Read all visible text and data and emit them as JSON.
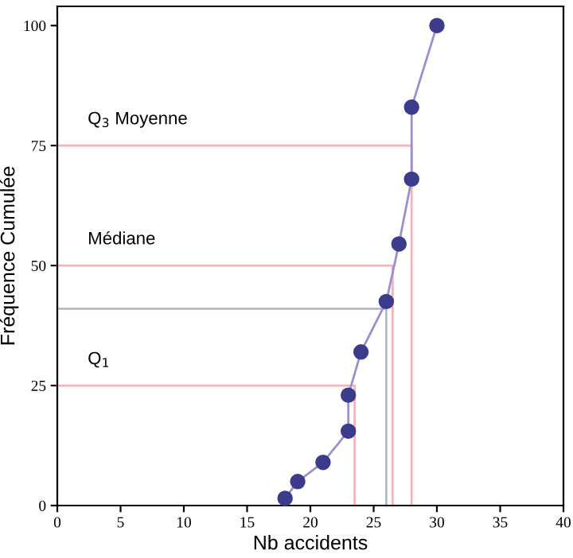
{
  "chart_data": {
    "type": "line",
    "xlabel": "Nb accidents",
    "ylabel": "Fréquence Cumulée",
    "xlim": [
      0,
      40
    ],
    "ylim": [
      0,
      104
    ],
    "xticks": [
      0,
      5,
      10,
      15,
      20,
      25,
      30,
      35,
      40
    ],
    "yticks": [
      0,
      25,
      50,
      75,
      100
    ],
    "grid": false,
    "series": [
      {
        "color": "#f0b4bc",
        "marker": "none",
        "x": [
          0,
          23.5,
          23.5
        ],
        "values": [
          25,
          25,
          0
        ]
      },
      {
        "color": "#f0b4bc",
        "marker": "none",
        "x": [
          0,
          26.5,
          26.5
        ],
        "values": [
          50,
          50,
          0
        ]
      },
      {
        "color": "#f0b4bc",
        "marker": "none",
        "x": [
          0,
          28,
          28
        ],
        "values": [
          75,
          75,
          0
        ]
      },
      {
        "color": "#b8b8c8",
        "marker": "none",
        "x": [
          0,
          26,
          26
        ],
        "values": [
          41,
          41,
          0
        ]
      },
      {
        "color": "#9a90d0",
        "marker": "circle",
        "colors": [
          "#3c3c8c",
          "#3c3c8c",
          "#3c3c8c",
          "#3c3c8c",
          "#3c3c8c",
          "#3c3c8c",
          "#3c3c8c",
          "#3c3c8c",
          "#3c3c8c",
          "#3c3c8c",
          "#3c3c8c"
        ],
        "x": [
          18,
          19,
          21,
          23,
          23,
          24,
          26,
          27,
          28,
          28,
          30
        ],
        "values": [
          1.5,
          5,
          9,
          15.5,
          23,
          32,
          42.5,
          54.5,
          68,
          83,
          100
        ]
      }
    ],
    "annotations": [
      {
        "text": "Q$_{3}$ Moyenne",
        "y": 75
      },
      {
        "text": "Médiane",
        "y": 50
      },
      {
        "text": "Q$_{1}$",
        "y": 25
      }
    ]
  }
}
